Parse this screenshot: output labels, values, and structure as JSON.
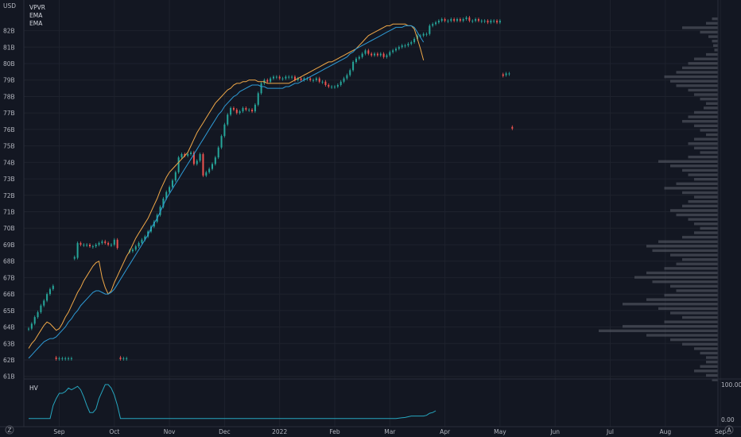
{
  "chart_data": {
    "type": "candlestick",
    "currency": "USD",
    "indicators": [
      "VPVR",
      "EMA",
      "EMA"
    ],
    "sub_indicator": "HV",
    "y_ticks": [
      "61B",
      "62B",
      "63B",
      "64B",
      "65B",
      "66B",
      "67B",
      "68B",
      "69B",
      "70B",
      "71B",
      "72B",
      "73B",
      "74B",
      "75B",
      "76B",
      "77B",
      "78B",
      "79B",
      "80B",
      "81B",
      "82B"
    ],
    "ylim": [
      60.6,
      82.8
    ],
    "x_labels": [
      {
        "label": "Sep",
        "index": 10
      },
      {
        "label": "Oct",
        "index": 28
      },
      {
        "label": "Nov",
        "index": 46
      },
      {
        "label": "Dec",
        "index": 64
      },
      {
        "label": "2022",
        "index": 82
      },
      {
        "label": "Feb",
        "index": 100
      },
      {
        "label": "Mar",
        "index": 118
      },
      {
        "label": "Apr",
        "index": 136
      },
      {
        "label": "May",
        "index": 154
      },
      {
        "label": "Jun",
        "index": 172
      },
      {
        "label": "Jul",
        "index": 190
      },
      {
        "label": "Aug",
        "index": 208
      },
      {
        "label": "Sep",
        "index": 226
      }
    ],
    "close": [
      63.9,
      64.2,
      64.6,
      64.9,
      65.3,
      65.6,
      66.0,
      66.3,
      66.5,
      62.1,
      62.1,
      62.1,
      62.1,
      62.1,
      62.1,
      68.2,
      69.1,
      69.0,
      69.0,
      69.0,
      68.9,
      68.9,
      69.0,
      69.1,
      69.2,
      69.1,
      69.0,
      69.0,
      69.3,
      68.8,
      62.1,
      62.1,
      62.1,
      68.6,
      68.7,
      68.9,
      69.1,
      69.3,
      69.5,
      69.8,
      70.1,
      70.4,
      70.8,
      71.3,
      71.8,
      72.2,
      72.5,
      72.9,
      73.4,
      74.3,
      74.5,
      74.4,
      74.5,
      74.6,
      73.9,
      74.1,
      74.5,
      73.2,
      73.4,
      73.6,
      73.9,
      74.3,
      74.9,
      75.6,
      76.3,
      76.9,
      77.3,
      77.2,
      77.0,
      77.1,
      77.3,
      77.2,
      77.2,
      77.1,
      77.5,
      78.2,
      78.8,
      79.0,
      78.9,
      79.1,
      79.2,
      79.2,
      79.1,
      79.1,
      79.2,
      79.2,
      79.2,
      79.0,
      79.1,
      79.0,
      79.1,
      79.1,
      79.0,
      79.0,
      79.1,
      78.9,
      78.9,
      78.7,
      78.6,
      78.6,
      78.6,
      78.7,
      78.9,
      79.1,
      79.3,
      79.6,
      80.1,
      80.3,
      80.4,
      80.6,
      80.8,
      80.6,
      80.5,
      80.6,
      80.5,
      80.6,
      80.4,
      80.5,
      80.7,
      80.8,
      80.9,
      81.0,
      81.1,
      81.1,
      81.2,
      81.3,
      81.5,
      81.7,
      81.7,
      81.8,
      81.8,
      82.3,
      82.4,
      82.5,
      82.6,
      82.7,
      82.6,
      82.6,
      82.7,
      82.6,
      82.7,
      82.6,
      82.7,
      82.8,
      82.6,
      82.6,
      82.7,
      82.6,
      82.6,
      82.6,
      82.5,
      82.6,
      82.6,
      82.5,
      82.6,
      79.3,
      79.4,
      79.4,
      76.1
    ],
    "ema_fast": [
      62.7,
      63.0,
      63.2,
      63.5,
      63.8,
      64.1,
      64.3,
      64.2,
      64.0,
      63.8,
      63.9,
      64.2,
      64.6,
      64.9,
      65.3,
      65.7,
      66.1,
      66.4,
      66.8,
      67.1,
      67.4,
      67.7,
      67.9,
      68.0,
      67.0,
      66.4,
      66.0,
      66.2,
      66.7,
      67.1,
      67.5,
      67.9,
      68.3,
      68.6,
      69.0,
      69.4,
      69.7,
      70.0,
      70.3,
      70.6,
      71.0,
      71.4,
      71.8,
      72.3,
      72.7,
      73.1,
      73.4,
      73.6,
      73.8,
      74.0,
      74.2,
      74.4,
      74.6,
      75.0,
      75.4,
      75.8,
      76.1,
      76.4,
      76.7,
      77.0,
      77.3,
      77.6,
      77.8,
      78.0,
      78.2,
      78.4,
      78.5,
      78.7,
      78.8,
      78.8,
      78.9,
      78.9,
      79.0,
      79.0,
      79.0,
      78.9,
      78.9,
      78.9,
      78.8,
      78.8,
      78.8,
      78.8,
      78.8,
      78.8,
      78.8,
      78.8,
      78.9,
      79.0,
      79.1,
      79.2,
      79.3,
      79.4,
      79.5,
      79.6,
      79.7,
      79.8,
      79.9,
      80.0,
      80.1,
      80.1,
      80.2,
      80.3,
      80.4,
      80.5,
      80.6,
      80.7,
      80.8,
      80.9,
      81.1,
      81.3,
      81.5,
      81.7,
      81.8,
      81.9,
      82.0,
      82.1,
      82.2,
      82.3,
      82.3,
      82.4,
      82.4,
      82.4,
      82.4,
      82.4,
      82.3,
      82.3,
      82.1,
      81.5,
      80.9,
      80.2
    ],
    "ema_slow": [
      62.1,
      62.3,
      62.5,
      62.7,
      62.9,
      63.1,
      63.2,
      63.3,
      63.3,
      63.4,
      63.6,
      63.8,
      64.0,
      64.3,
      64.5,
      64.8,
      65.0,
      65.3,
      65.5,
      65.7,
      65.9,
      66.1,
      66.2,
      66.2,
      66.1,
      66.0,
      66.0,
      66.1,
      66.3,
      66.6,
      66.9,
      67.2,
      67.5,
      67.8,
      68.1,
      68.4,
      68.7,
      69.0,
      69.3,
      69.6,
      70.0,
      70.3,
      70.6,
      71.0,
      71.4,
      71.8,
      72.1,
      72.4,
      72.7,
      73.0,
      73.3,
      73.6,
      73.9,
      74.2,
      74.5,
      74.8,
      75.1,
      75.4,
      75.7,
      76.0,
      76.3,
      76.6,
      76.9,
      77.1,
      77.4,
      77.6,
      77.8,
      78.0,
      78.1,
      78.3,
      78.4,
      78.5,
      78.6,
      78.7,
      78.7,
      78.7,
      78.6,
      78.6,
      78.5,
      78.5,
      78.5,
      78.5,
      78.5,
      78.5,
      78.6,
      78.6,
      78.7,
      78.8,
      78.8,
      78.9,
      79.0,
      79.1,
      79.2,
      79.3,
      79.4,
      79.5,
      79.6,
      79.7,
      79.8,
      79.9,
      80.0,
      80.1,
      80.2,
      80.3,
      80.4,
      80.6,
      80.7,
      80.9,
      81.0,
      81.1,
      81.2,
      81.3,
      81.4,
      81.5,
      81.6,
      81.7,
      81.8,
      81.9,
      82.0,
      82.1,
      82.2,
      82.2,
      82.2,
      82.3,
      82.3,
      82.3,
      82.2,
      81.9,
      81.6,
      81.3
    ],
    "hv_ticks": [
      "100.00",
      "0.00"
    ],
    "hv": [
      3,
      3,
      3,
      3,
      3,
      3,
      3,
      3,
      40,
      60,
      75,
      75,
      80,
      90,
      85,
      90,
      95,
      85,
      65,
      40,
      20,
      20,
      30,
      60,
      80,
      100,
      100,
      90,
      70,
      40,
      3,
      3,
      3,
      3,
      3,
      3,
      3,
      3,
      3,
      3,
      3,
      3,
      3,
      3,
      3,
      3,
      3,
      3,
      3,
      3,
      3,
      3,
      3,
      3,
      3,
      3,
      3,
      3,
      3,
      3,
      3,
      3,
      3,
      3,
      3,
      3,
      3,
      3,
      3,
      3,
      3,
      3,
      3,
      3,
      3,
      3,
      3,
      3,
      3,
      3,
      3,
      3,
      3,
      3,
      3,
      3,
      3,
      3,
      3,
      3,
      3,
      3,
      3,
      3,
      3,
      3,
      3,
      3,
      3,
      3,
      3,
      3,
      3,
      3,
      3,
      3,
      3,
      3,
      3,
      3,
      3,
      3,
      3,
      3,
      3,
      3,
      3,
      3,
      3,
      3,
      3,
      4,
      5,
      6,
      8,
      10,
      10,
      10,
      10,
      10,
      12,
      18,
      20,
      25
    ],
    "volume_profile": [
      0.05,
      0.1,
      0.3,
      0.15,
      0.08,
      0.05,
      0.04,
      0.03,
      0.1,
      0.2,
      0.25,
      0.3,
      0.35,
      0.45,
      0.4,
      0.35,
      0.25,
      0.2,
      0.15,
      0.1,
      0.12,
      0.2,
      0.25,
      0.3,
      0.2,
      0.15,
      0.1,
      0.2,
      0.25,
      0.2,
      0.15,
      0.25,
      0.5,
      0.4,
      0.3,
      0.25,
      0.2,
      0.35,
      0.45,
      0.3,
      0.2,
      0.25,
      0.3,
      0.4,
      0.35,
      0.25,
      0.2,
      0.15,
      0.2,
      0.3,
      0.5,
      0.6,
      0.55,
      0.4,
      0.3,
      0.35,
      0.45,
      0.6,
      0.7,
      0.55,
      0.4,
      0.35,
      0.45,
      0.6,
      0.8,
      0.5,
      0.4,
      0.3,
      0.45,
      0.8,
      1.0,
      0.6,
      0.4,
      0.3,
      0.2,
      0.15,
      0.1,
      0.1,
      0.15,
      0.2,
      0.1,
      0.05
    ]
  }
}
